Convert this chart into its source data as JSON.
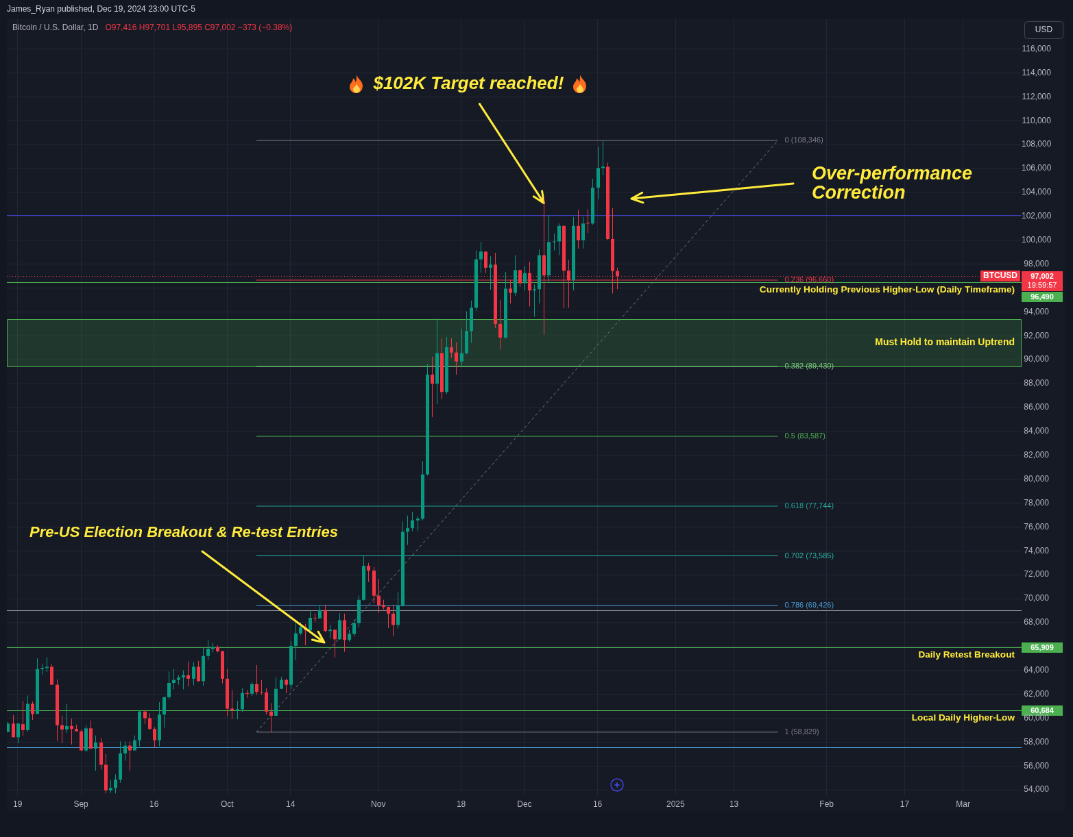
{
  "chart_data": {
    "type": "candlestick",
    "title": "Bitcoin / U.S. Dollar, 1D",
    "subtitle": "O97,416 H97,701 L95,895 C97,002 −373 (−0.38%)",
    "annotations": [
      "James_Ryan published, Dec 19, 2024 23:00 UTC-5",
      "USD",
      {
        "text": "$102K Target reached!",
        "x": "2024-12-05",
        "y": 103100
      },
      "Over-performance\nCorrection",
      "97,002",
      "19:59:57",
      "96,490",
      "Pre-US Election Breakout & Re-test Entries",
      "65,909",
      "60,684"
    ],
    "x": [
      "2024-08-17",
      "2024-08-18",
      "2024-08-19",
      "2024-08-20",
      "2024-08-21",
      "2024-08-22",
      "2024-08-23",
      "2024-08-24",
      "2024-08-25",
      "2024-08-26",
      "2024-08-27",
      "2024-08-28",
      "2024-08-29",
      "2024-08-30",
      "2024-08-31",
      "2024-09-01",
      "2024-09-02",
      "2024-09-03",
      "2024-09-04",
      "2024-09-05",
      "2024-09-06",
      "2024-09-07",
      "2024-09-08",
      "2024-09-09",
      "2024-09-10",
      "2024-09-11",
      "2024-09-12",
      "2024-09-13",
      "2024-09-14",
      "2024-09-15",
      "2024-09-16",
      "2024-09-17",
      "2024-09-18",
      "2024-09-19",
      "2024-09-20",
      "2024-09-21",
      "2024-09-22",
      "2024-09-23",
      "2024-09-24",
      "2024-09-25",
      "2024-09-26",
      "2024-09-27",
      "2024-09-28",
      "2024-09-29",
      "2024-09-30",
      "2024-10-01",
      "2024-10-02",
      "2024-10-03",
      "2024-10-04",
      "2024-10-05",
      "2024-10-06",
      "2024-10-07",
      "2024-10-08",
      "2024-10-09",
      "2024-10-10",
      "2024-10-11",
      "2024-10-12",
      "2024-10-13",
      "2024-10-14",
      "2024-10-15",
      "2024-10-16",
      "2024-10-17",
      "2024-10-18",
      "2024-10-19",
      "2024-10-20",
      "2024-10-21",
      "2024-10-22",
      "2024-10-23",
      "2024-10-24",
      "2024-10-25",
      "2024-10-26",
      "2024-10-27",
      "2024-10-28",
      "2024-10-29",
      "2024-10-30",
      "2024-10-31",
      "2024-11-01",
      "2024-11-02",
      "2024-11-03",
      "2024-11-04",
      "2024-11-05",
      "2024-11-06",
      "2024-11-07",
      "2024-11-08",
      "2024-11-09",
      "2024-11-10",
      "2024-11-11",
      "2024-11-12",
      "2024-11-13",
      "2024-11-14",
      "2024-11-15",
      "2024-11-16",
      "2024-11-17",
      "2024-11-18",
      "2024-11-19",
      "2024-11-20",
      "2024-11-21",
      "2024-11-22",
      "2024-11-23",
      "2024-11-24",
      "2024-11-25",
      "2024-11-26",
      "2024-11-27",
      "2024-11-28",
      "2024-11-29",
      "2024-11-30",
      "2024-12-01",
      "2024-12-02",
      "2024-12-03",
      "2024-12-04",
      "2024-12-05",
      "2024-12-06",
      "2024-12-07",
      "2024-12-08",
      "2024-12-09",
      "2024-12-10",
      "2024-12-11",
      "2024-12-12",
      "2024-12-13",
      "2024-12-14",
      "2024-12-15",
      "2024-12-16",
      "2024-12-17",
      "2024-12-18",
      "2024-12-19",
      "2024-12-20"
    ],
    "ohlc": [
      [
        58850,
        59700,
        58800,
        59550
      ],
      [
        59550,
        60250,
        58400,
        58400
      ],
      [
        58400,
        59550,
        57900,
        59550
      ],
      [
        59500,
        61450,
        58550,
        59000
      ],
      [
        59000,
        61900,
        58850,
        61200
      ],
      [
        61200,
        61400,
        59850,
        60350
      ],
      [
        60350,
        65000,
        60350,
        64100
      ],
      [
        64100,
        64550,
        63650,
        64200
      ],
      [
        64200,
        65100,
        63850,
        64300
      ],
      [
        64300,
        64500,
        62800,
        62800
      ],
      [
        62800,
        63250,
        58100,
        59400
      ],
      [
        59400,
        60200,
        57900,
        59050
      ],
      [
        59050,
        61200,
        58750,
        59350
      ],
      [
        59350,
        59950,
        57800,
        59100
      ],
      [
        59100,
        59450,
        58900,
        58900
      ],
      [
        58900,
        59050,
        57250,
        57300
      ],
      [
        57300,
        59400,
        57150,
        59150
      ],
      [
        59150,
        59800,
        57400,
        57450
      ],
      [
        57450,
        58550,
        55600,
        57950
      ],
      [
        57950,
        58350,
        55700,
        56100
      ],
      [
        56100,
        57000,
        53700,
        53950
      ],
      [
        53950,
        54800,
        53750,
        54150
      ],
      [
        54150,
        55300,
        53700,
        54850
      ],
      [
        54850,
        58050,
        54600,
        57050
      ],
      [
        57050,
        58050,
        56450,
        57700
      ],
      [
        57700,
        58050,
        55600,
        57300
      ],
      [
        57300,
        58550,
        57300,
        58150
      ],
      [
        58150,
        60650,
        57650,
        60550
      ],
      [
        60550,
        60650,
        59500,
        60000
      ],
      [
        60000,
        60400,
        59000,
        59100
      ],
      [
        59100,
        59250,
        57550,
        58150
      ],
      [
        58150,
        61350,
        57650,
        60300
      ],
      [
        60300,
        61800,
        59200,
        61750
      ],
      [
        61750,
        63900,
        61600,
        62950
      ],
      [
        62950,
        64100,
        62400,
        63200
      ],
      [
        63200,
        63600,
        62800,
        63400
      ],
      [
        63400,
        64000,
        62400,
        63600
      ],
      [
        63600,
        64750,
        62650,
        63300
      ],
      [
        63300,
        64700,
        62750,
        64300
      ],
      [
        64300,
        64800,
        63050,
        63100
      ],
      [
        63100,
        65900,
        62700,
        65200
      ],
      [
        65200,
        66550,
        64900,
        65800
      ],
      [
        65800,
        66300,
        65500,
        65950
      ],
      [
        65950,
        66100,
        65500,
        65600
      ],
      [
        65600,
        65650,
        62900,
        63300
      ],
      [
        63300,
        64100,
        60150,
        60800
      ],
      [
        60800,
        62350,
        59950,
        60650
      ],
      [
        60650,
        61450,
        59900,
        60750
      ],
      [
        60750,
        62500,
        60500,
        62100
      ],
      [
        62100,
        62350,
        61700,
        62050
      ],
      [
        62050,
        63000,
        61850,
        62850
      ],
      [
        62850,
        64450,
        61950,
        62200
      ],
      [
        62200,
        63200,
        61950,
        62150
      ],
      [
        62150,
        62500,
        60300,
        60550
      ],
      [
        60550,
        61250,
        58829,
        60200
      ],
      [
        60200,
        63400,
        60200,
        62450
      ],
      [
        62450,
        63450,
        62450,
        63200
      ],
      [
        63200,
        63300,
        62100,
        62800
      ],
      [
        62800,
        66450,
        62450,
        66050
      ],
      [
        66050,
        67950,
        64850,
        67100
      ],
      [
        67100,
        68000,
        66950,
        67600
      ],
      [
        67600,
        67900,
        66100,
        67350
      ],
      [
        67350,
        69000,
        67250,
        68400
      ],
      [
        68400,
        68750,
        68050,
        68350
      ],
      [
        68350,
        69400,
        68300,
        69050
      ],
      [
        69050,
        69500,
        67200,
        67300
      ],
      [
        67300,
        67800,
        66650,
        67400
      ],
      [
        67400,
        67400,
        65100,
        66600
      ],
      [
        66600,
        68800,
        66550,
        68200
      ],
      [
        68200,
        68750,
        65550,
        66550
      ],
      [
        66550,
        67400,
        66400,
        67050
      ],
      [
        67050,
        68250,
        66850,
        67950
      ],
      [
        67950,
        70250,
        67600,
        69900
      ],
      [
        69900,
        73650,
        69850,
        72750
      ],
      [
        72750,
        73000,
        71400,
        72350
      ],
      [
        72350,
        72650,
        69650,
        70250
      ],
      [
        70250,
        71650,
        68800,
        69450
      ],
      [
        69450,
        69900,
        69100,
        69300
      ],
      [
        69300,
        69350,
        67550,
        68750
      ],
      [
        68750,
        69450,
        66850,
        67800
      ],
      [
        67800,
        70550,
        67500,
        69400
      ],
      [
        69400,
        76450,
        69350,
        75600
      ],
      [
        75600,
        76950,
        74500,
        75900
      ],
      [
        75900,
        77250,
        75650,
        76550
      ],
      [
        76550,
        76900,
        75700,
        76700
      ],
      [
        76700,
        81500,
        76550,
        80400
      ],
      [
        80400,
        89650,
        80300,
        88750
      ],
      [
        88750,
        90250,
        85200,
        88000
      ],
      [
        88000,
        93450,
        86300,
        90550
      ],
      [
        90550,
        91800,
        86700,
        87300
      ],
      [
        87300,
        91900,
        87150,
        91050
      ],
      [
        91050,
        91800,
        90150,
        90600
      ],
      [
        90600,
        91450,
        88750,
        89850
      ],
      [
        89850,
        92600,
        89400,
        90550
      ],
      [
        90550,
        94050,
        90450,
        92400
      ],
      [
        92400,
        94950,
        91400,
        94350
      ],
      [
        94350,
        99150,
        94100,
        98400
      ],
      [
        98400,
        99850,
        97300,
        99050
      ],
      [
        99050,
        99050,
        97250,
        97700
      ],
      [
        97700,
        98650,
        95850,
        97950
      ],
      [
        97950,
        98950,
        92650,
        93000
      ],
      [
        93000,
        95000,
        90850,
        91850
      ],
      [
        91850,
        97350,
        91800,
        95950
      ],
      [
        95950,
        96650,
        94700,
        95600
      ],
      [
        95600,
        98750,
        95350,
        97500
      ],
      [
        97500,
        97550,
        96100,
        96400
      ],
      [
        96400,
        97850,
        95800,
        97250
      ],
      [
        97250,
        98200,
        94450,
        95800
      ],
      [
        95800,
        96300,
        93600,
        95900
      ],
      [
        95900,
        99250,
        94700,
        98750
      ],
      [
        98750,
        103650,
        92100,
        97050
      ],
      [
        97050,
        102100,
        96450,
        99850
      ],
      [
        99850,
        100550,
        99150,
        99900
      ],
      [
        99900,
        101400,
        98750,
        101200
      ],
      [
        101200,
        101250,
        94300,
        97450
      ],
      [
        97450,
        98350,
        94350,
        96650
      ],
      [
        96650,
        101950,
        95800,
        101200
      ],
      [
        101200,
        102550,
        99300,
        100000
      ],
      [
        100000,
        101950,
        99300,
        101400
      ],
      [
        101450,
        102600,
        100600,
        101400
      ],
      [
        101400,
        105150,
        101300,
        104400
      ],
      [
        104400,
        107850,
        103450,
        106050
      ],
      [
        106050,
        108346,
        105450,
        106150
      ],
      [
        106150,
        106500,
        100000,
        100100
      ],
      [
        100100,
        102700,
        95550,
        97416
      ],
      [
        97416,
        97701,
        95895,
        97002
      ]
    ],
    "colors": [
      "#089981",
      "#f23645",
      "#089981",
      "#f23645",
      "#089981",
      "#f23645",
      "#089981",
      "#089981",
      "#089981",
      "#f23645",
      "#f23645",
      "#f23645",
      "#089981",
      "#f23645",
      "#f23645",
      "#f23645",
      "#089981",
      "#f23645",
      "#089981",
      "#f23645",
      "#f23645",
      "#089981",
      "#089981",
      "#089981",
      "#089981",
      "#f23645",
      "#089981",
      "#089981",
      "#f23645",
      "#f23645",
      "#f23645",
      "#089981",
      "#089981",
      "#089981",
      "#089981",
      "#089981",
      "#089981",
      "#f23645",
      "#089981",
      "#f23645",
      "#089981",
      "#089981",
      "#089981",
      "#f23645",
      "#f23645",
      "#f23645",
      "#f23645",
      "#089981",
      "#089981",
      "#f23645",
      "#089981",
      "#f23645",
      "#f23645",
      "#f23645",
      "#f23645",
      "#089981",
      "#089981",
      "#f23645",
      "#089981",
      "#089981",
      "#089981",
      "#f23645",
      "#089981",
      "#f23645",
      "#089981",
      "#f23645",
      "#089981",
      "#f23645",
      "#089981",
      "#f23645",
      "#089981",
      "#089981",
      "#089981",
      "#089981",
      "#f23645",
      "#f23645",
      "#f23645",
      "#f23645",
      "#f23645",
      "#f23645",
      "#089981",
      "#089981",
      "#089981",
      "#089981",
      "#089981",
      "#089981",
      "#089981",
      "#f23645",
      "#089981",
      "#f23645",
      "#089981",
      "#f23645",
      "#f23645",
      "#089981",
      "#089981",
      "#089981",
      "#089981",
      "#089981",
      "#f23645",
      "#089981",
      "#f23645",
      "#f23645",
      "#089981",
      "#f23645",
      "#089981",
      "#f23645",
      "#089981",
      "#f23645",
      "#089981",
      "#089981",
      "#f23645",
      "#089981",
      "#089981",
      "#089981",
      "#f23645",
      "#f23645",
      "#089981",
      "#f23645",
      "#089981",
      "#f23645",
      "#089981",
      "#089981",
      "#089981",
      "#f23645",
      "#f23645",
      "#f23645"
    ],
    "series": [
      {
        "type": "line",
        "name": "0 (108,346)",
        "color": "#787b86",
        "x": [
          "2024-10-07",
          "2025-01-22"
        ],
        "values": [
          108346,
          108346
        ]
      },
      {
        "type": "line",
        "name": "0.236 (96,660)",
        "color": "#f23645",
        "x": [
          "2024-10-07",
          "2025-01-22"
        ],
        "values": [
          96660,
          96660
        ]
      },
      {
        "type": "line",
        "name": "0.382 (89,430)",
        "color": "#81c784",
        "x": [
          "2024-10-07",
          "2025-01-22"
        ],
        "values": [
          89430,
          89430
        ]
      },
      {
        "type": "line",
        "name": "0.5 (83,587)",
        "color": "#4caf50",
        "x": [
          "2024-10-07",
          "2025-01-22"
        ],
        "values": [
          83587,
          83587
        ]
      },
      {
        "type": "line",
        "name": "0.618 (77,744)",
        "color": "#26a69a",
        "x": [
          "2024-10-07",
          "2025-01-22"
        ],
        "values": [
          77744,
          77744
        ]
      },
      {
        "type": "line",
        "name": "0.702 (73,585)",
        "color": "#2ab7a9",
        "x": [
          "2024-10-07",
          "2025-01-22"
        ],
        "values": [
          73585,
          73585
        ]
      },
      {
        "type": "line",
        "name": "0.786 (69,426)",
        "color": "#4a9fd8",
        "x": [
          "2024-10-07",
          "2025-01-22"
        ],
        "values": [
          69426,
          69426
        ]
      },
      {
        "type": "line",
        "name": "1 (58,829)",
        "color": "#787b86",
        "x": [
          "2024-10-07",
          "2025-01-22"
        ],
        "values": [
          58829,
          58829
        ]
      },
      {
        "type": "line",
        "color": "#787b86",
        "line_style": "dashed",
        "x": [
          "2024-10-07",
          "2025-01-22"
        ],
        "values": [
          58829,
          108346
        ]
      }
    ],
    "ref_lines": [
      {
        "axis": "y",
        "value": 102100,
        "color": "#3d3fc4"
      },
      {
        "axis": "y",
        "value": 97002,
        "label": "BTCUSD",
        "color": "#f23645",
        "line_style": "dotted"
      },
      {
        "axis": "y",
        "value": 96490,
        "label": "Currently Holding Previous Higher-Low (Daily Timeframe)",
        "color": "#4caf50"
      },
      {
        "axis": "y",
        "value": 69000,
        "color": "#9598a1"
      },
      {
        "axis": "y",
        "value": 65909,
        "label": "Daily Retest Breakout",
        "color": "#4caf50"
      },
      {
        "axis": "y",
        "value": 60684,
        "label": "Local Daily Higher-Low",
        "color": "#4caf50"
      },
      {
        "axis": "y",
        "value": 57550,
        "color": "#4a9fd8"
      }
    ],
    "bands": [
      {
        "axis": "y",
        "from": 89430,
        "to": 93400,
        "label": "Must Hold to maintain Uptrend",
        "color": "#4caf50"
      }
    ],
    "xlim": [
      "2024-08-16T19:00",
      "2025-03-13"
    ],
    "xticks": [
      {
        "value": "2024-08-19",
        "label": "19"
      },
      {
        "value": "2024-09-01",
        "label": "Sep"
      },
      {
        "value": "2024-09-16",
        "label": "16"
      },
      {
        "value": "2024-10-01",
        "label": "Oct"
      },
      {
        "value": "2024-10-14",
        "label": "14"
      },
      {
        "value": "2024-11-01",
        "label": "Nov"
      },
      {
        "value": "2024-11-18",
        "label": "18"
      },
      {
        "value": "2024-12-01",
        "label": "Dec"
      },
      {
        "value": "2024-12-16",
        "label": "16"
      },
      {
        "value": "2025-01-01",
        "label": "2025"
      },
      {
        "value": "2025-01-13",
        "label": "13"
      },
      {
        "value": "2025-02-01",
        "label": "Feb"
      },
      {
        "value": "2025-02-17",
        "label": "17"
      },
      {
        "value": "2025-03-01",
        "label": "Mar"
      }
    ],
    "ylim": [
      53550,
      118500
    ],
    "yticks": [
      {
        "value": 54000,
        "label": "54,000"
      },
      {
        "value": 56000,
        "label": "56,000"
      },
      {
        "value": 58000,
        "label": "58,000"
      },
      {
        "value": 60000,
        "label": "60,000"
      },
      {
        "value": 62000,
        "label": "62,000"
      },
      {
        "value": 64000,
        "label": "64,000"
      },
      {
        "value": 66000,
        "label": null
      },
      {
        "value": 68000,
        "label": "68,000"
      },
      {
        "value": 70000,
        "label": "70,000"
      },
      {
        "value": 72000,
        "label": "72,000"
      },
      {
        "value": 74000,
        "label": "74,000"
      },
      {
        "value": 76000,
        "label": "76,000"
      },
      {
        "value": 78000,
        "label": "78,000"
      },
      {
        "value": 80000,
        "label": "80,000"
      },
      {
        "value": 82000,
        "label": "82,000"
      },
      {
        "value": 84000,
        "label": "84,000"
      },
      {
        "value": 86000,
        "label": "86,000"
      },
      {
        "value": 88000,
        "label": "88,000"
      },
      {
        "value": 90000,
        "label": "90,000"
      },
      {
        "value": 92000,
        "label": "92,000"
      },
      {
        "value": 94000,
        "label": "94,000"
      },
      {
        "value": 96000,
        "label": null
      },
      {
        "value": 98000,
        "label": "98,000"
      },
      {
        "value": 100000,
        "label": "100,000"
      },
      {
        "value": 102000,
        "label": "102,000"
      },
      {
        "value": 104000,
        "label": "104,000"
      },
      {
        "value": 106000,
        "label": "106,000"
      },
      {
        "value": 108000,
        "label": "108,000"
      },
      {
        "value": 110000,
        "label": "110,000"
      },
      {
        "value": 112000,
        "label": "112,000"
      },
      {
        "value": 114000,
        "label": "114,000"
      },
      {
        "value": 116000,
        "label": "116,000"
      }
    ],
    "grid": true
  }
}
